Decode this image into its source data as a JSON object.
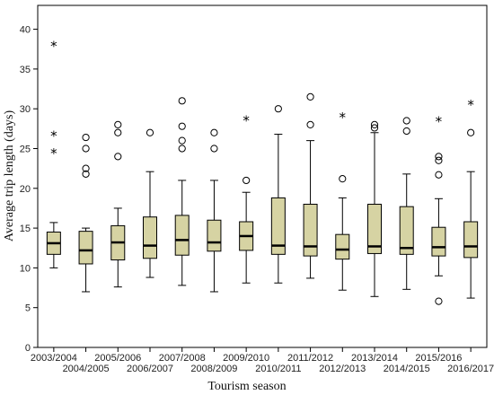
{
  "chart_data": {
    "type": "boxplot",
    "title": "",
    "xlabel": "Tourism season",
    "ylabel": "Average trip length (days)",
    "ylim": [
      0,
      43
    ],
    "yticks": [
      0,
      5,
      10,
      15,
      20,
      25,
      30,
      35,
      40
    ],
    "grid": false,
    "legend": "none",
    "box_color": "#d6d3a3",
    "categories": [
      "2003/2004",
      "2004/2005",
      "2005/2006",
      "2006/2007",
      "2007/2008",
      "2008/2009",
      "2009/2010",
      "2010/2011",
      "2011/2012",
      "2012/2013",
      "2013/2014",
      "2014/2015",
      "2015/2016",
      "2016/2017"
    ],
    "boxes": [
      {
        "category": "2003/2004",
        "whisker_low": 10.0,
        "q1": 11.7,
        "median": 13.1,
        "q3": 14.5,
        "whisker_high": 15.7,
        "outliers": [],
        "extremes": [
          38.0,
          26.7,
          24.5
        ]
      },
      {
        "category": "2004/2005",
        "whisker_low": 7.0,
        "q1": 10.5,
        "median": 12.2,
        "q3": 14.6,
        "whisker_high": 15.0,
        "outliers": [
          26.4,
          25.0,
          22.5,
          21.8
        ],
        "extremes": []
      },
      {
        "category": "2005/2006",
        "whisker_low": 7.6,
        "q1": 11.0,
        "median": 13.2,
        "q3": 15.3,
        "whisker_high": 17.5,
        "outliers": [
          28.0,
          27.0,
          24.0
        ],
        "extremes": []
      },
      {
        "category": "2006/2007",
        "whisker_low": 8.8,
        "q1": 11.2,
        "median": 12.8,
        "q3": 16.4,
        "whisker_high": 22.1,
        "outliers": [
          27.0
        ],
        "extremes": []
      },
      {
        "category": "2007/2008",
        "whisker_low": 7.8,
        "q1": 11.6,
        "median": 13.5,
        "q3": 16.6,
        "whisker_high": 21.0,
        "outliers": [
          31.0,
          27.8,
          26.0,
          25.0
        ],
        "extremes": []
      },
      {
        "category": "2008/2009",
        "whisker_low": 7.0,
        "q1": 12.1,
        "median": 13.2,
        "q3": 16.0,
        "whisker_high": 21.0,
        "outliers": [
          27.0,
          25.0
        ],
        "extremes": []
      },
      {
        "category": "2009/2010",
        "whisker_low": 8.1,
        "q1": 12.2,
        "median": 14.0,
        "q3": 15.8,
        "whisker_high": 19.5,
        "outliers": [
          21.0
        ],
        "extremes": [
          28.6
        ]
      },
      {
        "category": "2010/2011",
        "whisker_low": 8.1,
        "q1": 11.7,
        "median": 12.8,
        "q3": 18.8,
        "whisker_high": 26.8,
        "outliers": [
          30.0
        ],
        "extremes": []
      },
      {
        "category": "2011/2012",
        "whisker_low": 8.7,
        "q1": 11.5,
        "median": 12.7,
        "q3": 18.0,
        "whisker_high": 26.0,
        "outliers": [
          31.5,
          28.0
        ],
        "extremes": []
      },
      {
        "category": "2012/2013",
        "whisker_low": 7.2,
        "q1": 11.1,
        "median": 12.3,
        "q3": 14.2,
        "whisker_high": 18.8,
        "outliers": [
          21.2
        ],
        "extremes": [
          29.0
        ]
      },
      {
        "category": "2013/2014",
        "whisker_low": 6.4,
        "q1": 11.8,
        "median": 12.7,
        "q3": 18.0,
        "whisker_high": 27.0,
        "outliers": [
          28.0,
          27.6
        ],
        "extremes": []
      },
      {
        "category": "2014/2015",
        "whisker_low": 7.3,
        "q1": 11.7,
        "median": 12.5,
        "q3": 17.7,
        "whisker_high": 21.8,
        "outliers": [
          28.5,
          27.2
        ],
        "extremes": []
      },
      {
        "category": "2015/2016",
        "whisker_low": 9.0,
        "q1": 11.5,
        "median": 12.6,
        "q3": 15.1,
        "whisker_high": 18.7,
        "outliers": [
          24.0,
          23.5,
          21.7,
          5.8
        ],
        "extremes": [
          28.5
        ]
      },
      {
        "category": "2016/2017",
        "whisker_low": 6.2,
        "q1": 11.3,
        "median": 12.7,
        "q3": 15.8,
        "whisker_high": 22.1,
        "outliers": [
          27.0
        ],
        "extremes": [
          30.6
        ]
      }
    ]
  }
}
